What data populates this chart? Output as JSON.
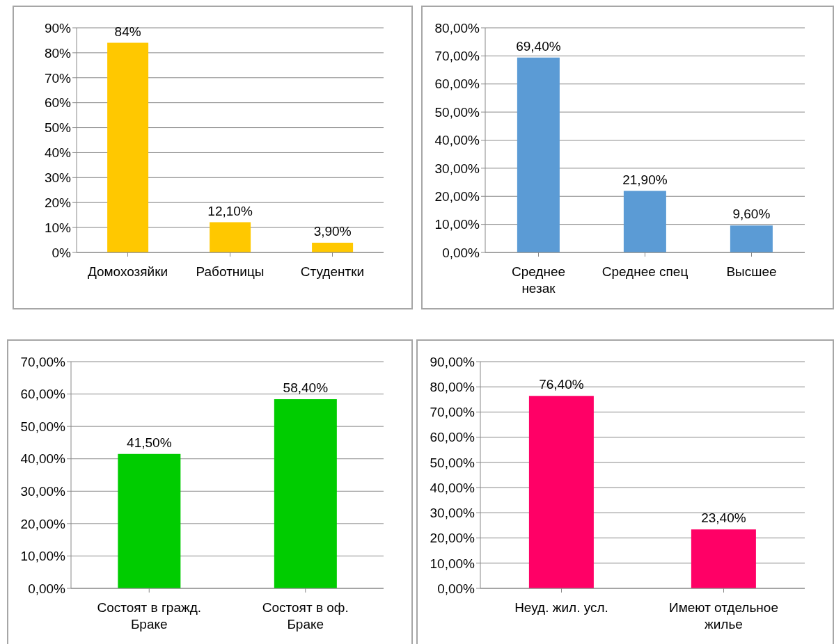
{
  "chart_data": [
    {
      "type": "bar",
      "categories": [
        "Домохозяйки",
        "Работницы",
        "Студентки"
      ],
      "values": [
        84,
        12.1,
        3.9
      ],
      "color": "#ffc800",
      "value_labels": [
        "84%",
        "12,10%",
        "3,90%"
      ],
      "ylim": [
        0,
        90
      ],
      "yticks": [
        {
          "value": 0,
          "label": "0%"
        },
        {
          "value": 10,
          "label": "10%"
        },
        {
          "value": 20,
          "label": "20%"
        },
        {
          "value": 30,
          "label": "30%"
        },
        {
          "value": 40,
          "label": "40%"
        },
        {
          "value": 50,
          "label": "50%"
        },
        {
          "value": 60,
          "label": "60%"
        },
        {
          "value": 70,
          "label": "70%"
        },
        {
          "value": 80,
          "label": "80%"
        },
        {
          "value": 90,
          "label": "90%"
        }
      ],
      "grid": "y"
    },
    {
      "type": "bar",
      "categories": [
        "Среднее незак",
        "Среднее спец",
        "Высшее"
      ],
      "values": [
        69.4,
        21.9,
        9.6
      ],
      "color": "#5b9bd5",
      "value_labels": [
        "69,40%",
        "21,90%",
        "9,60%"
      ],
      "ylim": [
        0,
        80
      ],
      "yticks": [
        {
          "value": 0,
          "label": "0,00%"
        },
        {
          "value": 10,
          "label": "10,00%"
        },
        {
          "value": 20,
          "label": "20,00%"
        },
        {
          "value": 30,
          "label": "30,00%"
        },
        {
          "value": 40,
          "label": "40,00%"
        },
        {
          "value": 50,
          "label": "50,00%"
        },
        {
          "value": 60,
          "label": "60,00%"
        },
        {
          "value": 70,
          "label": "70,00%"
        },
        {
          "value": 80,
          "label": "80,00%"
        }
      ],
      "grid": "y"
    },
    {
      "type": "bar",
      "categories": [
        "Состоят в гражд. Браке",
        "Состоят в оф. Браке"
      ],
      "values": [
        41.5,
        58.4
      ],
      "color": "#00cc00",
      "value_labels": [
        "41,50%",
        "58,40%"
      ],
      "ylim": [
        0,
        70
      ],
      "yticks": [
        {
          "value": 0,
          "label": "0,00%"
        },
        {
          "value": 10,
          "label": "10,00%"
        },
        {
          "value": 20,
          "label": "20,00%"
        },
        {
          "value": 30,
          "label": "30,00%"
        },
        {
          "value": 40,
          "label": "40,00%"
        },
        {
          "value": 50,
          "label": "50,00%"
        },
        {
          "value": 60,
          "label": "60,00%"
        },
        {
          "value": 70,
          "label": "70,00%"
        }
      ],
      "grid": "y"
    },
    {
      "type": "bar",
      "categories": [
        "Неуд. жил. усл.",
        "Имеют отдельное жилье"
      ],
      "values": [
        76.4,
        23.4
      ],
      "color": "#ff0066",
      "value_labels": [
        "76,40%",
        "23,40%"
      ],
      "ylim": [
        0,
        90
      ],
      "yticks": [
        {
          "value": 0,
          "label": "0,00%"
        },
        {
          "value": 10,
          "label": "10,00%"
        },
        {
          "value": 20,
          "label": "20,00%"
        },
        {
          "value": 30,
          "label": "30,00%"
        },
        {
          "value": 40,
          "label": "40,00%"
        },
        {
          "value": 50,
          "label": "50,00%"
        },
        {
          "value": 60,
          "label": "60,00%"
        },
        {
          "value": 70,
          "label": "70,00%"
        },
        {
          "value": 80,
          "label": "80,00%"
        },
        {
          "value": 90,
          "label": "90,00%"
        }
      ],
      "grid": "y"
    }
  ]
}
